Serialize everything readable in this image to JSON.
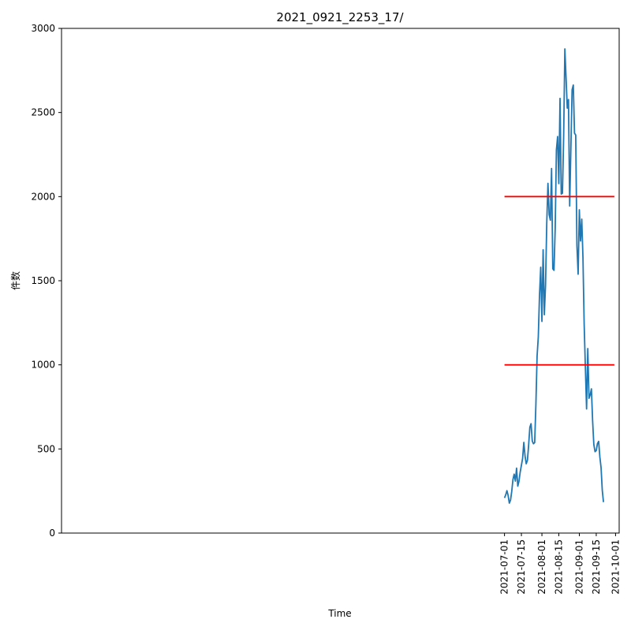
{
  "chart_data": {
    "type": "line",
    "title": "2021_0921_2253_17/",
    "xlabel": "Time",
    "ylabel": "件数",
    "ylim": [
      0,
      3000
    ],
    "xlim": [
      "2020-06-29",
      "2021-10-04"
    ],
    "yticks": [
      0,
      500,
      1000,
      1500,
      2000,
      2500,
      3000
    ],
    "xticks": [
      "2021-07-01",
      "2021-07-15",
      "2021-08-01",
      "2021-08-15",
      "2021-09-01",
      "2021-09-15",
      "2021-10-01"
    ],
    "grid": false,
    "series": [
      {
        "color": "#1f77b4",
        "x": [
          "2021-07-01",
          "2021-07-02",
          "2021-07-03",
          "2021-07-04",
          "2021-07-05",
          "2021-07-06",
          "2021-07-07",
          "2021-07-08",
          "2021-07-09",
          "2021-07-10",
          "2021-07-11",
          "2021-07-12",
          "2021-07-13",
          "2021-07-14",
          "2021-07-15",
          "2021-07-16",
          "2021-07-17",
          "2021-07-18",
          "2021-07-19",
          "2021-07-20",
          "2021-07-21",
          "2021-07-22",
          "2021-07-23",
          "2021-07-24",
          "2021-07-25",
          "2021-07-26",
          "2021-07-27",
          "2021-07-28",
          "2021-07-29",
          "2021-07-30",
          "2021-07-31",
          "2021-08-01",
          "2021-08-02",
          "2021-08-03",
          "2021-08-04",
          "2021-08-05",
          "2021-08-06",
          "2021-08-07",
          "2021-08-08",
          "2021-08-09",
          "2021-08-10",
          "2021-08-11",
          "2021-08-12",
          "2021-08-13",
          "2021-08-14",
          "2021-08-15",
          "2021-08-16",
          "2021-08-17",
          "2021-08-18",
          "2021-08-19",
          "2021-08-20",
          "2021-08-21",
          "2021-08-22",
          "2021-08-23",
          "2021-08-24",
          "2021-08-25",
          "2021-08-26",
          "2021-08-27",
          "2021-08-28",
          "2021-08-29",
          "2021-08-30",
          "2021-08-31",
          "2021-09-01",
          "2021-09-02",
          "2021-09-03",
          "2021-09-04",
          "2021-09-05",
          "2021-09-06",
          "2021-09-07",
          "2021-09-08",
          "2021-09-09",
          "2021-09-10",
          "2021-09-11",
          "2021-09-12",
          "2021-09-13",
          "2021-09-14",
          "2021-09-15",
          "2021-09-16",
          "2021-09-17",
          "2021-09-18",
          "2021-09-19",
          "2021-09-20",
          "2021-09-21"
        ],
        "y": [
          209,
          227,
          252,
          224,
          178,
          196,
          248,
          318,
          350,
          309,
          386,
          279,
          308,
          363,
          403,
          444,
          539,
          459,
          412,
          433,
          524,
          629,
          650,
          547,
          531,
          538,
          763,
          1052,
          1166,
          1414,
          1580,
          1258,
          1684,
          1298,
          1475,
          1840,
          2079,
          1893,
          1860,
          2167,
          1571,
          1562,
          1811,
          2278,
          2357,
          2077,
          2584,
          2015,
          2020,
          2354,
          2878,
          2706,
          2526,
          2577,
          1944,
          2291,
          2635,
          2663,
          2377,
          2366,
          1709,
          1539,
          1922,
          1736,
          1866,
          1638,
          1242,
          983,
          738,
          1097,
          801,
          822,
          857,
          668,
          527,
          484,
          490,
          532,
          545,
          452,
          389,
          254,
          184
        ]
      },
      {
        "color": "#ff0000",
        "x": [
          "2021-07-01",
          "2021-09-30"
        ],
        "y": [
          2000,
          2000
        ]
      },
      {
        "color": "#ff0000",
        "x": [
          "2021-07-01",
          "2021-09-30"
        ],
        "y": [
          1000,
          1000
        ]
      }
    ]
  }
}
